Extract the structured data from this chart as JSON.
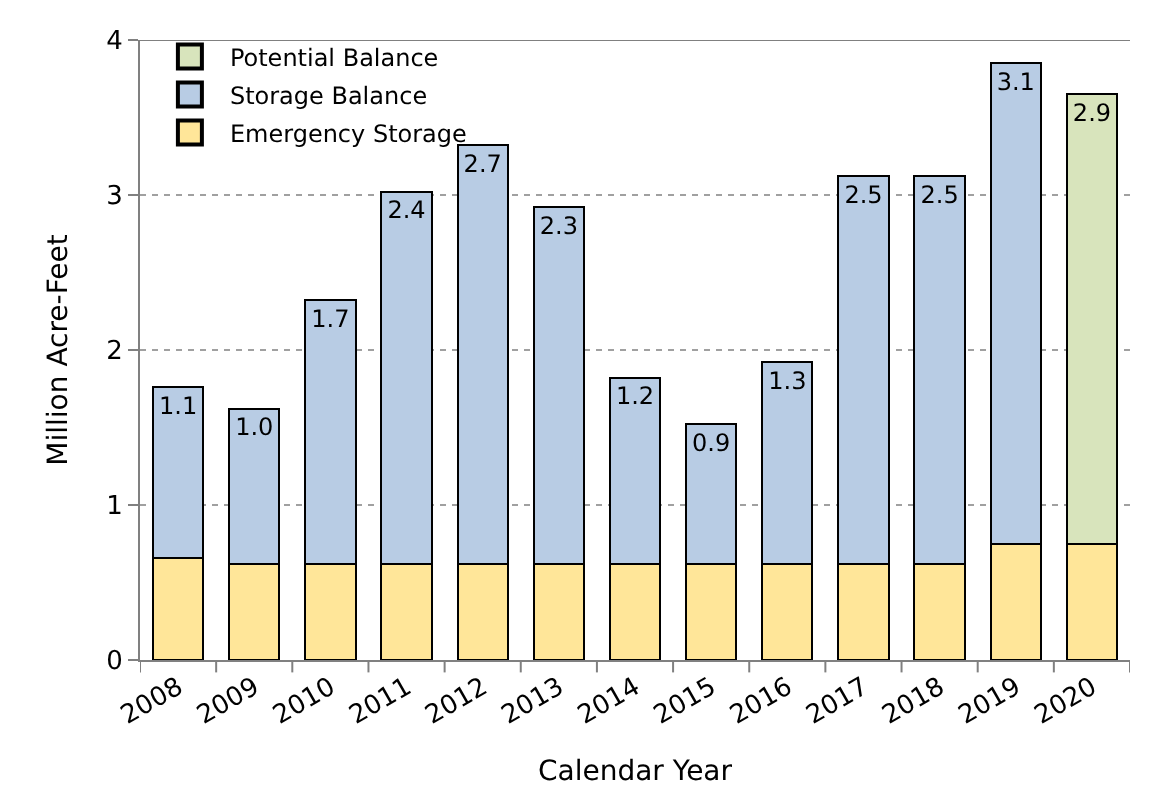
{
  "chart_data": {
    "type": "bar",
    "stacked": true,
    "xlabel": "Calendar Year",
    "ylabel": "Million Acre-Feet",
    "categories": [
      "2008",
      "2009",
      "2010",
      "2011",
      "2012",
      "2013",
      "2014",
      "2015",
      "2016",
      "2017",
      "2018",
      "2019",
      "2020"
    ],
    "series": [
      {
        "name": "Emergency Storage",
        "color": "#ffe699",
        "values": [
          0.66,
          0.62,
          0.62,
          0.62,
          0.62,
          0.62,
          0.62,
          0.62,
          0.62,
          0.62,
          0.62,
          0.75,
          0.75
        ]
      },
      {
        "name": "Storage Balance",
        "color": "#b8cce4",
        "values": [
          1.1,
          1.0,
          1.7,
          2.4,
          2.7,
          2.3,
          1.2,
          0.9,
          1.3,
          2.5,
          2.5,
          3.1,
          null
        ],
        "value_labels": [
          "1.1",
          "1.0",
          "1.7",
          "2.4",
          "2.7",
          "2.3",
          "1.2",
          "0.9",
          "1.3",
          "2.5",
          "2.5",
          "3.1",
          null
        ]
      },
      {
        "name": "Potential Balance",
        "color": "#d8e4bc",
        "values": [
          null,
          null,
          null,
          null,
          null,
          null,
          null,
          null,
          null,
          null,
          null,
          null,
          2.9
        ],
        "value_labels": [
          null,
          null,
          null,
          null,
          null,
          null,
          null,
          null,
          null,
          null,
          null,
          null,
          "2.9"
        ]
      }
    ],
    "ylim": [
      0,
      4
    ],
    "yticks": [
      0,
      1,
      2,
      3,
      4
    ],
    "grid": "y",
    "legend": "top left"
  }
}
